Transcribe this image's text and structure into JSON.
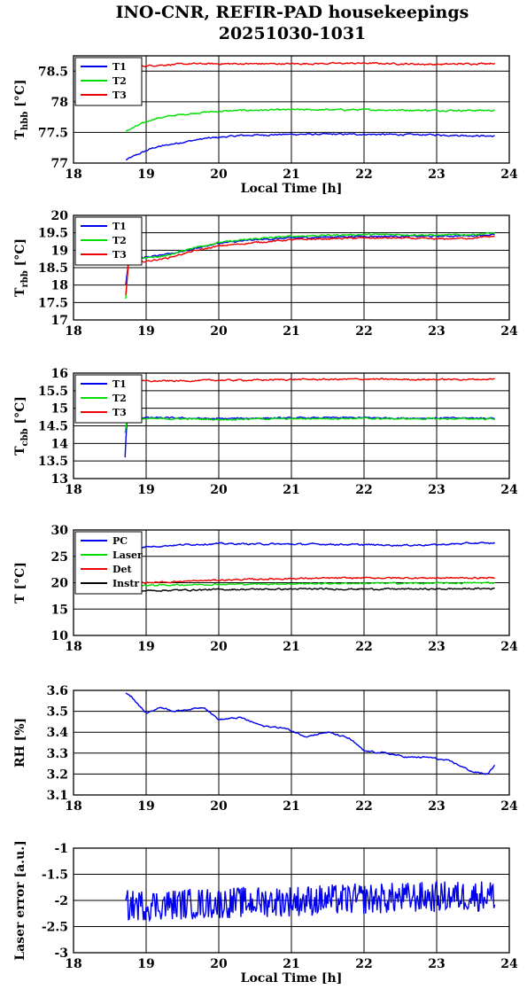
{
  "title_line1": "INO-CNR, REFIR-PAD housekeepings",
  "title_line2": "20251030-1031",
  "colors": {
    "blue": "#0000ee",
    "green": "#00dd00",
    "red": "#ee0000",
    "black": "#000000"
  },
  "chart_data": [
    {
      "type": "line",
      "ylabel": "T_hbb [°C]",
      "xlabel": "Local Time [h]",
      "xlim": [
        18,
        24
      ],
      "ylim": [
        77,
        78.75
      ],
      "yticks": [
        "77",
        "77.5",
        "78",
        "78.5"
      ],
      "legend": "top-left",
      "series": [
        {
          "name": "T1",
          "color": "blue",
          "x": [
            18.72,
            18.9,
            19.1,
            19.4,
            19.8,
            20.3,
            21,
            22,
            23,
            23.8
          ],
          "y": [
            77.05,
            77.15,
            77.25,
            77.32,
            77.4,
            77.45,
            77.47,
            77.47,
            77.46,
            77.44
          ]
        },
        {
          "name": "T2",
          "color": "green",
          "x": [
            18.72,
            18.9,
            19.1,
            19.4,
            19.8,
            20.3,
            21,
            22,
            23,
            23.8
          ],
          "y": [
            77.52,
            77.62,
            77.72,
            77.78,
            77.83,
            77.86,
            77.87,
            77.87,
            77.86,
            77.86
          ]
        },
        {
          "name": "T3",
          "color": "red",
          "x": [
            18.72,
            18.9,
            19.2,
            19.6,
            20,
            21,
            22,
            23,
            23.8
          ],
          "y": [
            78.6,
            78.58,
            78.6,
            78.62,
            78.62,
            78.62,
            78.63,
            78.61,
            78.63
          ]
        }
      ]
    },
    {
      "type": "line",
      "ylabel": "T_rbb [°C]",
      "xlabel": "",
      "xlim": [
        18,
        24
      ],
      "ylim": [
        17,
        20
      ],
      "yticks": [
        "17",
        "17.5",
        "18",
        "18.5",
        "19",
        "19.5",
        "20"
      ],
      "legend": "top-left",
      "series": [
        {
          "name": "T1",
          "color": "blue",
          "x": [
            18.72,
            18.76,
            19,
            19.3,
            19.6,
            20,
            20.5,
            21,
            21.5,
            22,
            22.5,
            23,
            23.5,
            23.8
          ],
          "y": [
            18.0,
            18.72,
            18.8,
            18.88,
            19.02,
            19.2,
            19.3,
            19.35,
            19.38,
            19.4,
            19.4,
            19.4,
            19.42,
            19.45
          ]
        },
        {
          "name": "T2",
          "color": "green",
          "x": [
            18.72,
            18.76,
            19,
            19.3,
            19.6,
            20,
            20.5,
            21,
            21.5,
            22,
            22.5,
            23,
            23.5,
            23.8
          ],
          "y": [
            17.6,
            18.75,
            18.78,
            18.85,
            19.05,
            19.22,
            19.33,
            19.4,
            19.43,
            19.45,
            19.45,
            19.43,
            19.45,
            19.5
          ]
        },
        {
          "name": "T3",
          "color": "red",
          "x": [
            18.72,
            18.76,
            19,
            19.3,
            19.6,
            20,
            20.5,
            21,
            21.5,
            22,
            22.5,
            23,
            23.5,
            23.8
          ],
          "y": [
            17.7,
            18.65,
            18.68,
            18.78,
            18.95,
            19.12,
            19.22,
            19.3,
            19.33,
            19.35,
            19.35,
            19.32,
            19.35,
            19.4
          ]
        }
      ]
    },
    {
      "type": "line",
      "ylabel": "T_cbb [°C]",
      "xlabel": "",
      "xlim": [
        18,
        24
      ],
      "ylim": [
        13,
        16
      ],
      "yticks": [
        "13",
        "13.5",
        "14",
        "14.5",
        "15",
        "15.5",
        "16"
      ],
      "legend": "top-left",
      "series": [
        {
          "name": "T1",
          "color": "blue",
          "x": [
            18.71,
            18.73,
            18.76,
            19,
            19.5,
            20,
            20.5,
            21,
            21.5,
            22,
            22.5,
            23,
            23.5,
            23.8
          ],
          "y": [
            13.6,
            14.5,
            14.75,
            14.73,
            14.72,
            14.7,
            14.72,
            14.72,
            14.73,
            14.73,
            14.72,
            14.72,
            14.72,
            14.72
          ]
        },
        {
          "name": "T2",
          "color": "green",
          "x": [
            18.71,
            18.73,
            18.76,
            19,
            19.5,
            20,
            20.5,
            21,
            21.5,
            22,
            22.5,
            23,
            23.5,
            23.8
          ],
          "y": [
            14.3,
            14.6,
            14.72,
            14.7,
            14.7,
            14.68,
            14.7,
            14.7,
            14.71,
            14.71,
            14.7,
            14.7,
            14.7,
            14.7
          ]
        },
        {
          "name": "T3",
          "color": "red",
          "x": [
            18.76,
            19,
            19.5,
            20,
            20.5,
            21,
            21.5,
            22,
            22.5,
            23,
            23.5,
            23.8
          ],
          "y": [
            15.78,
            15.77,
            15.78,
            15.8,
            15.8,
            15.82,
            15.82,
            15.83,
            15.82,
            15.82,
            15.82,
            15.83
          ]
        }
      ]
    },
    {
      "type": "line",
      "ylabel": "T [°C]",
      "xlabel": "",
      "xlim": [
        18,
        24
      ],
      "ylim": [
        10,
        30
      ],
      "yticks": [
        "10",
        "15",
        "20",
        "25",
        "30"
      ],
      "legend": "top-left",
      "series": [
        {
          "name": "PC",
          "color": "blue",
          "x": [
            18.72,
            19,
            19.5,
            20,
            21,
            21.5,
            22,
            22.5,
            23,
            23.5,
            23.8
          ],
          "y": [
            26.5,
            26.8,
            27.2,
            27.4,
            27.3,
            27.3,
            27.2,
            27.1,
            27.2,
            27.5,
            27.5
          ]
        },
        {
          "name": "Laser",
          "color": "green",
          "x": [
            18.72,
            19,
            20,
            21,
            22,
            23,
            23.8
          ],
          "y": [
            19.4,
            19.5,
            19.7,
            19.8,
            19.9,
            19.9,
            20.0
          ]
        },
        {
          "name": "Det",
          "color": "red",
          "x": [
            18.72,
            19,
            20,
            21,
            22,
            23,
            23.8
          ],
          "y": [
            19.9,
            20.0,
            20.5,
            20.8,
            20.9,
            20.9,
            20.9
          ]
        },
        {
          "name": "Instr",
          "color": "black",
          "x": [
            18.72,
            19,
            20,
            21,
            22,
            23,
            23.8
          ],
          "y": [
            18.3,
            18.5,
            18.7,
            18.8,
            18.8,
            18.8,
            18.9
          ]
        }
      ]
    },
    {
      "type": "line",
      "ylabel": "RH [%]",
      "xlabel": "",
      "xlim": [
        18,
        24
      ],
      "ylim": [
        3.1,
        3.6
      ],
      "yticks": [
        "3.1",
        "3.2",
        "3.3",
        "3.4",
        "3.5",
        "3.6"
      ],
      "series": [
        {
          "name": "",
          "color": "blue",
          "x": [
            18.72,
            18.8,
            18.9,
            19.0,
            19.2,
            19.4,
            19.6,
            19.8,
            20.0,
            20.3,
            20.6,
            20.9,
            21.2,
            21.5,
            21.8,
            22.0,
            22.3,
            22.6,
            22.9,
            23.2,
            23.5,
            23.7,
            23.8
          ],
          "y": [
            3.59,
            3.57,
            3.53,
            3.49,
            3.52,
            3.5,
            3.51,
            3.52,
            3.46,
            3.47,
            3.43,
            3.42,
            3.38,
            3.4,
            3.37,
            3.31,
            3.3,
            3.28,
            3.28,
            3.26,
            3.21,
            3.2,
            3.24
          ]
        }
      ]
    },
    {
      "type": "line",
      "ylabel": "Laser error [a.u.]",
      "xlabel": "Local Time [h]",
      "xlim": [
        18,
        24
      ],
      "ylim": [
        -3,
        -1
      ],
      "yticks": [
        "-3",
        "-2.5",
        "-2",
        "-1.5",
        "-1"
      ],
      "series": [
        {
          "name": "",
          "color": "blue",
          "x": [
            18.72,
            23.8
          ],
          "y": [
            -2.1,
            -1.9
          ],
          "noise": 0.3
        }
      ]
    }
  ],
  "xticks": [
    "18",
    "19",
    "20",
    "21",
    "22",
    "23",
    "24"
  ]
}
